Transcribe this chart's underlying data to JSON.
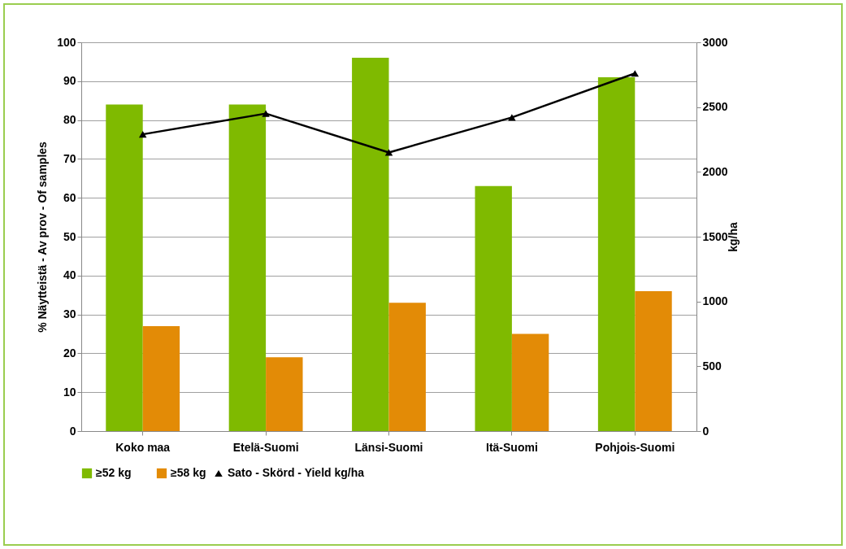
{
  "chart_data": {
    "type": "bar",
    "categories": [
      "Koko maa",
      "Etelä-Suomi",
      "Länsi-Suomi",
      "Itä-Suomi",
      "Pohjois-Suomi"
    ],
    "series": [
      {
        "name": "≥52 kg",
        "color": "#7fba00",
        "values": [
          84,
          84,
          96,
          63,
          91
        ]
      },
      {
        "name": "≥58 kg",
        "color": "#e38b06",
        "values": [
          27,
          19,
          33,
          25,
          36
        ]
      },
      {
        "name": "Sato - Skörd - Yield kg/ha",
        "type": "line",
        "axis": "y2",
        "color": "#000000",
        "values": [
          2290,
          2450,
          2150,
          2420,
          2760
        ]
      }
    ],
    "ylabel": "% Näytteistä - Av prov - Of samples",
    "y2label": "kg/ha",
    "ylim": [
      0,
      100
    ],
    "yticks": [
      0,
      10,
      20,
      30,
      40,
      50,
      60,
      70,
      80,
      90,
      100
    ],
    "y2lim": [
      0,
      3000
    ],
    "y2ticks": [
      0,
      500,
      1000,
      1500,
      2000,
      2500,
      3000
    ],
    "grid": "y",
    "legend": "bottom",
    "marker": "triangle",
    "line_style": "solid"
  }
}
